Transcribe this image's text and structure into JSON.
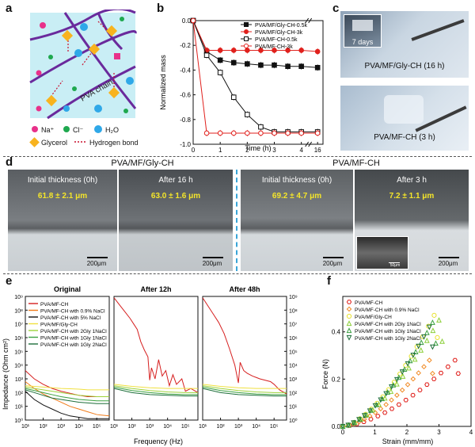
{
  "panel_labels": {
    "a": "a",
    "b": "b",
    "c": "c",
    "d": "d",
    "e": "e",
    "f": "f"
  },
  "panel_a": {
    "chain_label": "PVA chain",
    "legend": {
      "na": "Na⁺",
      "cl": "Cl⁻",
      "h2o": "H₂O",
      "glycerol": "Glycerol",
      "hbond": "Hydrogen bond"
    },
    "colors": {
      "bg": "#c9eef5",
      "chain": "#6a2a9c",
      "na": "#e8318a",
      "cl": "#1fa84f",
      "h2o": "#2fa8e8",
      "glycerol": "#f8b31e",
      "hbond": "#c8102e"
    }
  },
  "panel_b": {
    "chart_data": {
      "type": "line",
      "ylabel": "Normalized mass",
      "xlabel": "Time (h)",
      "x_ticks": [
        "0",
        "1",
        "2",
        "3",
        "4",
        "16"
      ],
      "y_ticks": [
        "0.0",
        "-0.2",
        "-0.4",
        "-0.6",
        "-0.8",
        "-1.0"
      ],
      "ylim": [
        -1.0,
        0.0
      ],
      "series": [
        {
          "name": "PVA/MF/Gly-CH-0.5k",
          "color": "#111111",
          "marker": "filled-square",
          "x": [
            0,
            0.5,
            1,
            1.5,
            2,
            2.5,
            3,
            3.5,
            4,
            16
          ],
          "y": [
            0,
            -0.25,
            -0.32,
            -0.34,
            -0.35,
            -0.36,
            -0.36,
            -0.37,
            -0.37,
            -0.38
          ]
        },
        {
          "name": "PVA/MF/Gly-CH-3k",
          "color": "#e0201c",
          "marker": "filled-circle",
          "x": [
            0,
            0.5,
            1,
            1.5,
            2,
            2.5,
            3,
            3.5,
            4,
            16
          ],
          "y": [
            0,
            -0.24,
            -0.24,
            -0.24,
            -0.24,
            -0.24,
            -0.24,
            -0.24,
            -0.24,
            -0.25
          ]
        },
        {
          "name": "PVA/MF-CH-0.5k",
          "color": "#111111",
          "marker": "open-square",
          "x": [
            0,
            0.5,
            1,
            1.5,
            2,
            2.5,
            3,
            3.5,
            4,
            16
          ],
          "y": [
            0,
            -0.28,
            -0.42,
            -0.62,
            -0.76,
            -0.86,
            -0.9,
            -0.9,
            -0.9,
            -0.9
          ]
        },
        {
          "name": "PVA/MF-CH-3k",
          "color": "#e0201c",
          "marker": "open-circle",
          "x": [
            0,
            0.5,
            1,
            1.5,
            2,
            2.5,
            3,
            3.5,
            4,
            16
          ],
          "y": [
            0,
            -0.91,
            -0.91,
            -0.91,
            -0.91,
            -0.91,
            -0.91,
            -0.91,
            -0.91,
            -0.91
          ]
        }
      ]
    }
  },
  "panel_c": {
    "top_caption": "PVA/MF/Gly-CH (16 h)",
    "inset_caption": "7 days",
    "bottom_caption": "PVA/MF-CH (3 h)"
  },
  "panel_d": {
    "left_group_title": "PVA/MF/Gly-CH",
    "right_group_title": "PVA/MF-CH",
    "photos": [
      {
        "caption": "Initial thickness (0h)",
        "value": "61.8 ± 2.1 μm",
        "scale": "200μm"
      },
      {
        "caption": "After 16 h",
        "value": "63.0 ± 1.6 μm",
        "scale": "200μm"
      },
      {
        "caption": "Initial thickness (0h)",
        "value": "69.2 ± 4.7 μm",
        "scale": "200μm"
      },
      {
        "caption": "After 3 h",
        "value": "7.2 ± 1.1 μm",
        "scale": "200μm"
      }
    ],
    "inset_scale": "50μm"
  },
  "panel_e": {
    "chart_data": {
      "type": "line",
      "subplot_titles": [
        "Original",
        "After 12h",
        "After 48h"
      ],
      "ylabel": "Impedance (Ohm cm²)",
      "xlabel": "Frequency (Hz)",
      "x_ticks": [
        "10¹",
        "10²",
        "10³",
        "10⁴",
        "10⁵"
      ],
      "y_ticks": [
        "10⁰",
        "10¹",
        "10²",
        "10³",
        "10⁴",
        "10⁵",
        "10⁶",
        "10⁷",
        "10⁸",
        "10⁹"
      ],
      "ylim_log10": [
        0,
        9
      ],
      "xlim_log10": [
        1,
        5.7
      ],
      "legend": [
        {
          "name": "PVA/MF-CH",
          "color": "#d61f1f"
        },
        {
          "name": "PVA/MF-CH with 0.9% NaCl",
          "color": "#f07b1a"
        },
        {
          "name": "PVA/MF-CH with 5% NaCl",
          "color": "#111111"
        },
        {
          "name": "PVA/MF/Gly-CH",
          "color": "#f0e040"
        },
        {
          "name": "PVA/MF-CH with 2Gly 1NaCl",
          "color": "#9ed23a"
        },
        {
          "name": "PVA/MF-CH with 1Gly 1NaCl",
          "color": "#3aa040"
        },
        {
          "name": "PVA/MF-CH with 1Gly 2NaCl",
          "color": "#1d6e3a"
        }
      ],
      "original": [
        {
          "name": "PVA/MF-CH",
          "logf": [
            1,
            1.5,
            2,
            2.5,
            3,
            3.5,
            4,
            4.5,
            5,
            5.7
          ],
          "logz": [
            3.6,
            3.0,
            2.6,
            2.3,
            2.1,
            1.95,
            1.8,
            1.7,
            1.7,
            1.7
          ]
        },
        {
          "name": "PVA/MF-CH with 0.9% NaCl",
          "logf": [
            1,
            1.5,
            2,
            2.5,
            3,
            3.5,
            4,
            4.5,
            5,
            5.7
          ],
          "logz": [
            2.8,
            2.3,
            1.9,
            1.6,
            1.3,
            1.0,
            0.8,
            0.6,
            0.4,
            0.3
          ]
        },
        {
          "name": "PVA/MF-CH with 5% NaCl",
          "logf": [
            1,
            1.5,
            2,
            2.5,
            3,
            3.5,
            4,
            4.5,
            5,
            5.7
          ],
          "logz": [
            2.1,
            1.5,
            1.1,
            0.8,
            0.5,
            0.3,
            0.2,
            0.1,
            0.1,
            0.1
          ]
        },
        {
          "name": "PVA/MF/Gly-CH",
          "logf": [
            1,
            1.5,
            2,
            2.5,
            3,
            3.5,
            4,
            4.5,
            5,
            5.7
          ],
          "logz": [
            2.5,
            2.45,
            2.4,
            2.35,
            2.3,
            2.28,
            2.25,
            2.2,
            2.2,
            2.2
          ]
        },
        {
          "name": "PVA/MF-CH with 2Gly 1NaCl",
          "logf": [
            1,
            1.5,
            2,
            2.5,
            3,
            3.5,
            4,
            4.5,
            5,
            5.7
          ],
          "logz": [
            2.4,
            2.3,
            2.2,
            2.1,
            2.0,
            1.9,
            1.8,
            1.75,
            1.7,
            1.7
          ]
        },
        {
          "name": "PVA/MF-CH with 1Gly 1NaCl",
          "logf": [
            1,
            1.5,
            2,
            2.5,
            3,
            3.5,
            4,
            4.5,
            5,
            5.7
          ],
          "logz": [
            2.3,
            2.15,
            2.0,
            1.85,
            1.7,
            1.6,
            1.5,
            1.45,
            1.4,
            1.4
          ]
        },
        {
          "name": "PVA/MF-CH with 1Gly 2NaCl",
          "logf": [
            1,
            1.5,
            2,
            2.5,
            3,
            3.5,
            4,
            4.5,
            5,
            5.7
          ],
          "logz": [
            2.2,
            2.0,
            1.8,
            1.6,
            1.5,
            1.4,
            1.3,
            1.25,
            1.2,
            1.2
          ]
        }
      ],
      "after12": [
        {
          "name": "PVA/MF-CH",
          "logf": [
            1,
            1.3,
            1.6,
            1.9,
            2.1,
            2.3,
            2.5,
            2.7,
            2.9,
            3.0,
            3.1,
            3.3,
            3.5,
            3.7,
            3.9,
            4.1,
            4.3,
            4.5,
            4.8,
            5.0,
            5.3,
            5.7
          ],
          "logz": [
            8.9,
            8.4,
            7.9,
            7.4,
            7.0,
            6.6,
            5.7,
            5.1,
            4.6,
            2.9,
            3.8,
            3.0,
            4.4,
            3.2,
            3.6,
            2.5,
            3.3,
            2.6,
            3.0,
            2.1,
            2.3,
            2.0
          ]
        },
        {
          "name": "PVA/MF/Gly-CH",
          "logf": [
            1,
            2,
            3,
            4,
            5,
            5.7
          ],
          "logz": [
            2.6,
            2.45,
            2.35,
            2.3,
            2.3,
            2.3
          ]
        },
        {
          "name": "PVA/MF-CH with 2Gly 1NaCl",
          "logf": [
            1,
            2,
            3,
            4,
            5,
            5.7
          ],
          "logz": [
            2.5,
            2.3,
            2.15,
            2.05,
            2.0,
            2.0
          ]
        },
        {
          "name": "PVA/MF-CH with 1Gly 1NaCl",
          "logf": [
            1,
            2,
            3,
            4,
            5,
            5.7
          ],
          "logz": [
            2.4,
            2.15,
            2.0,
            1.9,
            1.85,
            1.85
          ]
        },
        {
          "name": "PVA/MF-CH with 1Gly 2NaCl",
          "logf": [
            1,
            2,
            3,
            4,
            5,
            5.7
          ],
          "logz": [
            2.3,
            2.0,
            1.85,
            1.8,
            1.75,
            1.75
          ]
        }
      ],
      "after48": [
        {
          "name": "PVA/MF-CH",
          "logf": [
            1,
            1.3,
            1.6,
            1.9,
            2.2,
            2.5,
            2.8,
            3.0,
            3.1,
            3.3,
            3.5,
            3.8,
            4.0,
            4.2,
            4.5,
            4.8,
            5.0,
            5.3,
            5.7
          ],
          "logz": [
            8.9,
            8.3,
            7.7,
            7.1,
            6.3,
            5.2,
            4.0,
            2.7,
            4.2,
            3.6,
            3.4,
            3.2,
            3.1,
            3.0,
            2.9,
            2.8,
            2.6,
            2.2,
            1.9
          ]
        },
        {
          "name": "PVA/MF/Gly-CH",
          "logf": [
            1,
            2,
            3,
            4,
            5,
            5.7
          ],
          "logz": [
            2.6,
            2.45,
            2.35,
            2.3,
            2.3,
            2.3
          ]
        },
        {
          "name": "PVA/MF-CH with 2Gly 1NaCl",
          "logf": [
            1,
            2,
            3,
            4,
            5,
            5.7
          ],
          "logz": [
            2.5,
            2.3,
            2.15,
            2.05,
            2.0,
            2.0
          ]
        },
        {
          "name": "PVA/MF-CH with 1Gly 1NaCl",
          "logf": [
            1,
            2,
            3,
            4,
            5,
            5.7
          ],
          "logz": [
            2.4,
            2.15,
            2.0,
            1.9,
            1.85,
            1.85
          ]
        },
        {
          "name": "PVA/MF-CH with 1Gly 2NaCl",
          "logf": [
            1,
            2,
            3,
            4,
            5,
            5.7
          ],
          "logz": [
            2.3,
            2.0,
            1.85,
            1.8,
            1.75,
            1.75
          ]
        }
      ]
    }
  },
  "panel_f": {
    "chart_data": {
      "type": "scatter",
      "ylabel": "Force (N)",
      "xlabel": "Strain (mm/mm)",
      "x_ticks": [
        "0",
        "1",
        "2",
        "3",
        "4"
      ],
      "y_ticks": [
        "0.0",
        "0.2",
        "0.4"
      ],
      "xlim": [
        0,
        4
      ],
      "ylim": [
        0,
        0.55
      ],
      "series": [
        {
          "name": "PVA/MF-CH",
          "color": "#e0201c",
          "marker": "hexagon",
          "xmax": 3.5,
          "ymax": 0.28
        },
        {
          "name": "PVA/MF-CH with 0.9% NaCl",
          "color": "#f08a24",
          "marker": "diamond",
          "xmax": 2.7,
          "ymax": 0.28
        },
        {
          "name": "PVA/MF/Gly-CH",
          "color": "#e8e230",
          "marker": "circle",
          "xmax": 2.85,
          "ymax": 0.47
        },
        {
          "name": "PVA/MF-CH with 2Gly 1NaCl",
          "color": "#8ccf3a",
          "marker": "triangle-up",
          "xmax": 3.0,
          "ymax": 0.45
        },
        {
          "name": "PVA/MF-CH with 1Gly 1NaCl",
          "color": "#3aa040",
          "marker": "triangle-up",
          "xmax": 2.8,
          "ymax": 0.44
        },
        {
          "name": "PVA/MF-CH with 1Gly 2NaCl",
          "color": "#1d6e3a",
          "marker": "triangle-down",
          "xmax": 2.7,
          "ymax": 0.42
        }
      ]
    }
  }
}
